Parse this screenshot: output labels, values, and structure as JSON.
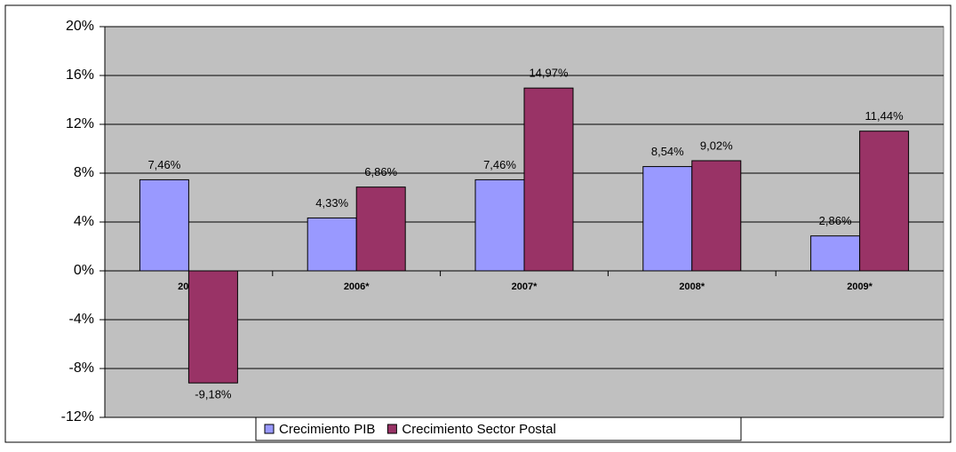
{
  "chart_data": {
    "type": "bar",
    "categories": [
      "2005",
      "2006*",
      "2007*",
      "2008*",
      "2009*"
    ],
    "series": [
      {
        "name": "Crecimiento PIB",
        "color": "#9999ff",
        "values": [
          7.46,
          4.33,
          7.46,
          8.54,
          2.86
        ],
        "value_labels": [
          "7,46%",
          "4,33%",
          "7,46%",
          "8,54%",
          "2,86%"
        ]
      },
      {
        "name": "Crecimiento Sector Postal",
        "color": "#993366",
        "values": [
          -9.18,
          6.86,
          14.97,
          9.02,
          11.44
        ],
        "value_labels": [
          "-9,18%",
          "6,86%",
          "14,97%",
          "9,02%",
          "11,44%"
        ]
      }
    ],
    "ylim": [
      -12,
      20
    ],
    "yticks": [
      {
        "value": -12,
        "label": "-12%"
      },
      {
        "value": -8,
        "label": "-8%"
      },
      {
        "value": -4,
        "label": "-4%"
      },
      {
        "value": 0,
        "label": "0%"
      },
      {
        "value": 4,
        "label": "4%"
      },
      {
        "value": 8,
        "label": "8%"
      },
      {
        "value": 12,
        "label": "12%"
      },
      {
        "value": 16,
        "label": "16%"
      },
      {
        "value": 20,
        "label": "20%"
      }
    ],
    "grid": true,
    "legend": "bottom"
  }
}
